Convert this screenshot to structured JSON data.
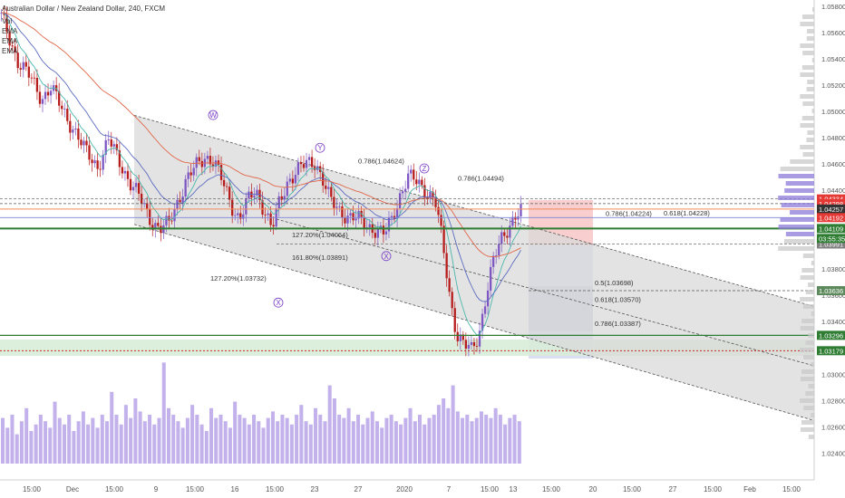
{
  "chart_data": {
    "type": "candlestick",
    "title": "Australian Dollar / New Zealand Dollar, 240, FXCM",
    "indicators": [
      "Vol",
      "EMA",
      "EMA",
      "EMA"
    ],
    "x_ticks": [
      "15:00",
      "Dec",
      "15:00",
      "9",
      "15:00",
      "16",
      "15:00",
      "23",
      "27",
      "2020",
      "7",
      "15:00",
      "13",
      "15:00",
      "20",
      "15:00",
      "27",
      "15:00",
      "Feb",
      "15:00"
    ],
    "y_ticks": [
      1.058,
      1.056,
      1.054,
      1.052,
      1.05,
      1.048,
      1.046,
      1.044,
      1.042,
      1.04,
      1.038,
      1.036,
      1.034,
      1.032,
      1.03,
      1.028,
      1.026,
      1.024
    ],
    "y_tick_labels": [
      "1.05800",
      "1.05600",
      "1.05400",
      "1.05200",
      "1.05000",
      "1.04800",
      "1.04600",
      "1.04400",
      "1.04200",
      "1.04000",
      "1.03800",
      "1.03600",
      "1.03400",
      "1.03200",
      "1.03000",
      "1.02800",
      "1.02600",
      "1.02400"
    ],
    "ylim": [
      1.0232,
      1.0582
    ],
    "price_path": [
      [
        0,
        1.0575
      ],
      [
        8,
        1.056
      ],
      [
        20,
        1.0538
      ],
      [
        34,
        1.0525
      ],
      [
        46,
        1.051
      ],
      [
        56,
        1.0518
      ],
      [
        66,
        1.0505
      ],
      [
        80,
        1.0488
      ],
      [
        92,
        1.0472
      ],
      [
        108,
        1.0458
      ],
      [
        120,
        1.0478
      ],
      [
        132,
        1.0462
      ],
      [
        144,
        1.0445
      ],
      [
        156,
        1.0432
      ],
      [
        166,
        1.0418
      ],
      [
        176,
        1.041
      ],
      [
        186,
        1.0414
      ],
      [
        196,
        1.0432
      ],
      [
        206,
        1.0448
      ],
      [
        216,
        1.0458
      ],
      [
        226,
        1.0466
      ],
      [
        236,
        1.0462
      ],
      [
        246,
        1.0445
      ],
      [
        256,
        1.0428
      ],
      [
        264,
        1.0418
      ],
      [
        272,
        1.043
      ],
      [
        282,
        1.044
      ],
      [
        292,
        1.0425
      ],
      [
        300,
        1.041
      ],
      [
        308,
        1.043
      ],
      [
        318,
        1.0448
      ],
      [
        328,
        1.0455
      ],
      [
        338,
        1.046
      ],
      [
        348,
        1.0462
      ],
      [
        356,
        1.0448
      ],
      [
        364,
        1.0432
      ],
      [
        374,
        1.0425
      ],
      [
        384,
        1.042
      ],
      [
        394,
        1.0418
      ],
      [
        404,
        1.0414
      ],
      [
        414,
        1.041
      ],
      [
        424,
        1.0406
      ],
      [
        432,
        1.0418
      ],
      [
        442,
        1.0438
      ],
      [
        450,
        1.045
      ],
      [
        460,
        1.0446
      ],
      [
        470,
        1.044
      ],
      [
        480,
        1.0432
      ],
      [
        488,
        1.04
      ],
      [
        496,
        1.036
      ],
      [
        504,
        1.033
      ],
      [
        512,
        1.0322
      ],
      [
        520,
        1.0318
      ],
      [
        528,
        1.033
      ],
      [
        536,
        1.036
      ],
      [
        544,
        1.0385
      ],
      [
        552,
        1.0402
      ],
      [
        560,
        1.0412
      ],
      [
        568,
        1.042
      ],
      [
        576,
        1.0424
      ]
    ],
    "volume": [
      28,
      22,
      30,
      18,
      26,
      34,
      20,
      24,
      30,
      26,
      22,
      38,
      28,
      24,
      30,
      20,
      26,
      32,
      24,
      28,
      22,
      30,
      26,
      44,
      30,
      24,
      36,
      28,
      40,
      32,
      26,
      30,
      24,
      28,
      62,
      34,
      30,
      26,
      22,
      28,
      36,
      30,
      24,
      20,
      34,
      28,
      30,
      26,
      22,
      38,
      30,
      28,
      24,
      30,
      26,
      22,
      28,
      32,
      26,
      30,
      28,
      24,
      30,
      36,
      26,
      24,
      34,
      30,
      26,
      48,
      40,
      30,
      28,
      34,
      26,
      30,
      24,
      28,
      32,
      26,
      22,
      28,
      30,
      26,
      24,
      28,
      34,
      26,
      30,
      24,
      28,
      30,
      36,
      40,
      34,
      48,
      32,
      28,
      30,
      26,
      28,
      32,
      30,
      28,
      34,
      30,
      24,
      28,
      30,
      26
    ],
    "channel": {
      "upper": [
        [
          148,
          1.0497
        ],
        [
          932,
          1.0345
        ]
      ],
      "lower": [
        [
          148,
          1.0414
        ],
        [
          932,
          1.0258
        ]
      ],
      "mid": [
        [
          305,
          1.0418
        ],
        [
          932,
          1.03
        ]
      ]
    },
    "horizontal_levels": [
      {
        "price": 1.04334,
        "label": "1.04334",
        "color": "#e53935"
      },
      {
        "price": 1.04298,
        "label": "1.04298",
        "color": "#e53935"
      },
      {
        "price": 1.04257,
        "label": "1.04257",
        "color": "#333333"
      },
      {
        "price": 1.04192,
        "label": "1.04192",
        "color": "#e53935"
      },
      {
        "price": 1.04109,
        "label": "1.04109",
        "color": "#2e7d32"
      },
      {
        "price": 1.04015,
        "label": "1.04015",
        "color": "#2e7d32"
      },
      {
        "price": 1.03991,
        "label": "1.03991",
        "color": "#7f7f7f"
      },
      {
        "price": 1.03636,
        "label": "1.03636",
        "color": "#5d8a5d"
      },
      {
        "price": 1.03296,
        "label": "1.03296",
        "color": "#2e7d32"
      },
      {
        "price": 1.03179,
        "label": "1.03179",
        "color": "#2e7d32"
      }
    ],
    "countdown": "03:55:35",
    "annotations": [
      {
        "text": "0.786(1.04624)",
        "x": 395,
        "price": 1.04624
      },
      {
        "text": "0.786(1.04494)",
        "x": 505,
        "price": 1.04494
      },
      {
        "text": "0.786(1.04224)",
        "x": 668,
        "price": 1.04224
      },
      {
        "text": "0.618(1.04228)",
        "x": 732,
        "price": 1.04228
      },
      {
        "text": "127.20%(1.04064)",
        "x": 322,
        "price": 1.04064
      },
      {
        "text": "161.80%(1.03891)",
        "x": 322,
        "price": 1.03891
      },
      {
        "text": "127.20%(1.03732)",
        "x": 232,
        "price": 1.03732
      },
      {
        "text": "0.5(1.03698)",
        "x": 656,
        "price": 1.03698
      },
      {
        "text": "0.618(1.03570)",
        "x": 656,
        "price": 1.0357
      },
      {
        "text": "0.786(1.03387)",
        "x": 656,
        "price": 1.03387
      }
    ],
    "waves": [
      {
        "label": "W",
        "x": 235,
        "price": 1.04972
      },
      {
        "label": "Y",
        "x": 353,
        "price": 1.04723
      },
      {
        "label": "Z",
        "x": 468,
        "price": 1.04566
      },
      {
        "label": "X",
        "x": 307,
        "price": 1.03545
      },
      {
        "label": "X",
        "x": 426,
        "price": 1.03899
      }
    ]
  }
}
